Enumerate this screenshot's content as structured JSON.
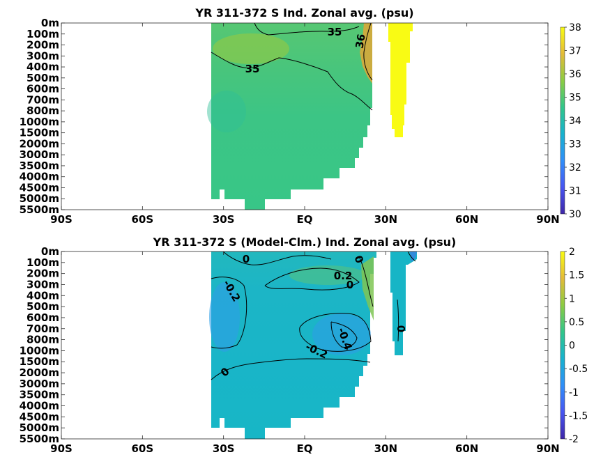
{
  "colormap": [
    "#3e26a8",
    "#4755f2",
    "#2f8ff9",
    "#17b2ce",
    "#31c68a",
    "#8ccc42",
    "#e3bb38",
    "#f9fb14"
  ],
  "chart_data": [
    {
      "type": "heatmap",
      "title": "YR 311-372 S Ind. Zonal avg. (psu)",
      "x_ticks": [
        "90S",
        "60S",
        "30S",
        "EQ",
        "30N",
        "60N",
        "90N"
      ],
      "x_range": [
        -90,
        90
      ],
      "y_ticks": [
        "0m",
        "100m",
        "200m",
        "300m",
        "400m",
        "500m",
        "600m",
        "700m",
        "800m",
        "1000m",
        "1500m",
        "2000m",
        "3000m",
        "3500m",
        "4000m",
        "4500m",
        "5000m",
        "5500m"
      ],
      "colorbar": {
        "min": 30,
        "max": 38,
        "ticks": [
          "30",
          "31",
          "32",
          "33",
          "34",
          "35",
          "36",
          "37",
          "38"
        ]
      },
      "contour_labels": [
        "35",
        "36",
        "35"
      ],
      "data_extent": {
        "south_lat": -34,
        "main_north_lat": 24,
        "red_sea_lat": [
          30,
          40
        ]
      },
      "typical_values": {
        "surface": 35.0,
        "intermediate": 34.7,
        "deep": 34.7,
        "red_sea": 38.0,
        "persian_gulf": 36.5
      }
    },
    {
      "type": "heatmap",
      "title": "YR 311-372 S (Model-Clm.) Ind. Zonal avg. (psu)",
      "x_ticks": [
        "90S",
        "60S",
        "30S",
        "EQ",
        "30N",
        "60N",
        "90N"
      ],
      "x_range": [
        -90,
        90
      ],
      "y_ticks": [
        "0m",
        "100m",
        "200m",
        "300m",
        "400m",
        "500m",
        "600m",
        "700m",
        "800m",
        "1000m",
        "1500m",
        "2000m",
        "3000m",
        "3500m",
        "4000m",
        "4500m",
        "5000m",
        "5500m"
      ],
      "colorbar": {
        "min": -2,
        "max": 2,
        "ticks": [
          "-2",
          "-1.5",
          "-1",
          "-0.5",
          "0",
          "0.5",
          "1",
          "1.5",
          "2"
        ]
      },
      "contour_labels": [
        "0",
        "-0.2",
        "0.2",
        "0",
        "0",
        "-0.4",
        "-0.2",
        "0",
        "0"
      ],
      "typical_values": {
        "deep": 0.0,
        "intermediate_south": -0.25,
        "intermediate_north": -0.4,
        "surface_north": 0.2
      }
    }
  ]
}
